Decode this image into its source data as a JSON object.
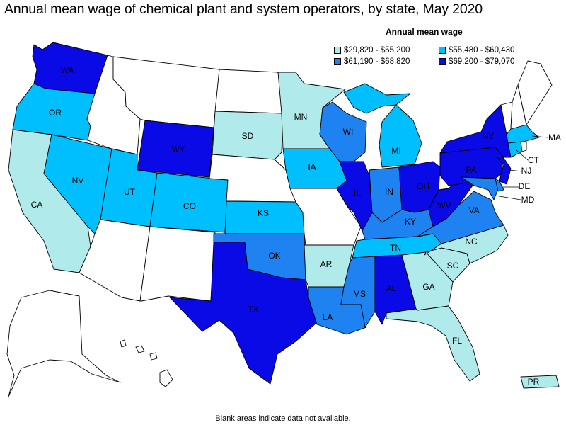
{
  "title": "Annual mean wage of chemical plant and system operators, by state, May 2020",
  "legend": {
    "title": "Annual mean wage",
    "items": [
      {
        "label": "$29,820 - $55,200",
        "color": "#b0eaea"
      },
      {
        "label": "$55,480 - $60,430",
        "color": "#00bfff"
      },
      {
        "label": "$61,190 - $68,820",
        "color": "#1e82f0"
      },
      {
        "label": "$69,200 - $79,070",
        "color": "#0a0ae6"
      }
    ]
  },
  "no_data_color": "#ffffff",
  "footnote": "Blank areas indicate data not available.",
  "states": [
    {
      "abbr": "WA",
      "category": 4
    },
    {
      "abbr": "OR",
      "category": 2
    },
    {
      "abbr": "CA",
      "category": 1
    },
    {
      "abbr": "NV",
      "category": 2
    },
    {
      "abbr": "UT",
      "category": 2
    },
    {
      "abbr": "CO",
      "category": 2
    },
    {
      "abbr": "WY",
      "category": 4
    },
    {
      "abbr": "SD",
      "category": 1
    },
    {
      "abbr": "MN",
      "category": 1
    },
    {
      "abbr": "IA",
      "category": 2
    },
    {
      "abbr": "KS",
      "category": 2
    },
    {
      "abbr": "OK",
      "category": 3
    },
    {
      "abbr": "TX",
      "category": 4
    },
    {
      "abbr": "AR",
      "category": 1
    },
    {
      "abbr": "LA",
      "category": 3
    },
    {
      "abbr": "MS",
      "category": 3
    },
    {
      "abbr": "AL",
      "category": 4
    },
    {
      "abbr": "WI",
      "category": 3
    },
    {
      "abbr": "IL",
      "category": 4
    },
    {
      "abbr": "MI",
      "category": 2
    },
    {
      "abbr": "IN",
      "category": 3
    },
    {
      "abbr": "OH",
      "category": 4
    },
    {
      "abbr": "KY",
      "category": 3
    },
    {
      "abbr": "TN",
      "category": 2
    },
    {
      "abbr": "GA",
      "category": 1
    },
    {
      "abbr": "FL",
      "category": 1
    },
    {
      "abbr": "SC",
      "category": 1
    },
    {
      "abbr": "NC",
      "category": 1
    },
    {
      "abbr": "VA",
      "category": 3
    },
    {
      "abbr": "WV",
      "category": 4
    },
    {
      "abbr": "PA",
      "category": 4
    },
    {
      "abbr": "NY",
      "category": 4
    },
    {
      "abbr": "NJ",
      "category": 4
    },
    {
      "abbr": "DE",
      "category": 3
    },
    {
      "abbr": "MD",
      "category": 3
    },
    {
      "abbr": "CT",
      "category": 2
    },
    {
      "abbr": "MA",
      "category": 2
    },
    {
      "abbr": "PR",
      "category": 1
    },
    {
      "abbr": "MT",
      "category": 0
    },
    {
      "abbr": "ID",
      "category": 0
    },
    {
      "abbr": "ND",
      "category": 0
    },
    {
      "abbr": "NE",
      "category": 0
    },
    {
      "abbr": "MO",
      "category": 0
    },
    {
      "abbr": "AZ",
      "category": 0
    },
    {
      "abbr": "NM",
      "category": 0
    },
    {
      "abbr": "ME",
      "category": 0
    },
    {
      "abbr": "NH",
      "category": 0
    },
    {
      "abbr": "VT",
      "category": 0
    },
    {
      "abbr": "RI",
      "category": 0
    },
    {
      "abbr": "AK",
      "category": 0
    },
    {
      "abbr": "HI",
      "category": 0
    }
  ]
}
